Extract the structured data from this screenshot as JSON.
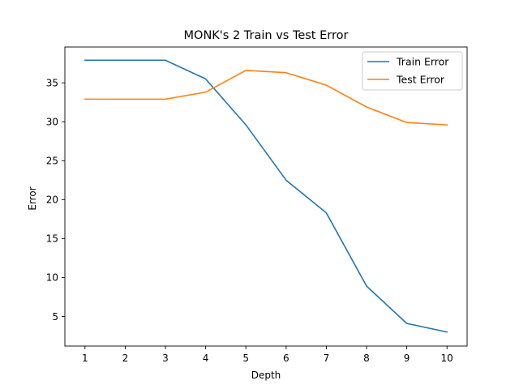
{
  "chart_data": {
    "type": "line",
    "title": "MONK's 2 Train vs Test Error",
    "xlabel": "Depth",
    "ylabel": "Error",
    "x": [
      1,
      2,
      3,
      4,
      5,
      6,
      7,
      8,
      9,
      10
    ],
    "xlim": [
      0.5,
      10.5
    ],
    "ylim": [
      1.2,
      39.6
    ],
    "xticks": [
      1,
      2,
      3,
      4,
      5,
      6,
      7,
      8,
      9,
      10
    ],
    "yticks": [
      5,
      10,
      15,
      20,
      25,
      30,
      35
    ],
    "grid": false,
    "legend_position": "top-right",
    "series": [
      {
        "name": "Train Error",
        "color": "#1f77b4",
        "values": [
          37.9,
          37.9,
          37.9,
          35.5,
          29.6,
          22.5,
          18.3,
          8.9,
          4.1,
          3.0
        ]
      },
      {
        "name": "Test Error",
        "color": "#ff7f0e",
        "values": [
          32.9,
          32.9,
          32.9,
          33.8,
          36.6,
          36.3,
          34.7,
          31.9,
          29.9,
          29.6
        ]
      }
    ]
  }
}
